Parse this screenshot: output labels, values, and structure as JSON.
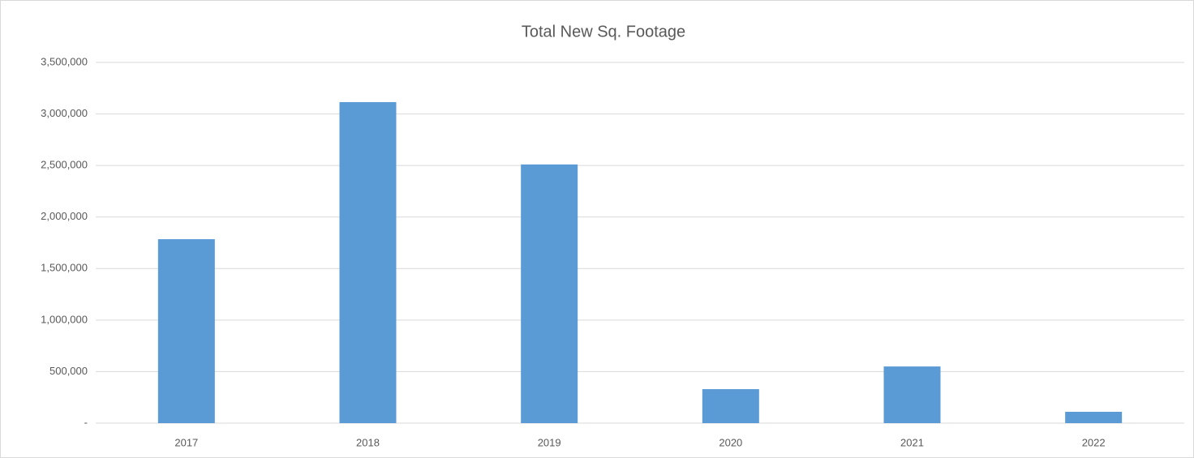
{
  "chart_data": {
    "type": "bar",
    "title": "Total New Sq. Footage",
    "categories": [
      "2017",
      "2018",
      "2019",
      "2020",
      "2021",
      "2022"
    ],
    "values": [
      1785000,
      3115000,
      2510000,
      330000,
      550000,
      110000
    ],
    "color": "#5b9bd5",
    "ylim": [
      0,
      3500000
    ],
    "yticks": [
      {
        "value": 0,
        "label": "-"
      },
      {
        "value": 500000,
        "label": "500,000"
      },
      {
        "value": 1000000,
        "label": "1,000,000"
      },
      {
        "value": 1500000,
        "label": "1,500,000"
      },
      {
        "value": 2000000,
        "label": "2,000,000"
      },
      {
        "value": 2500000,
        "label": "2,500,000"
      },
      {
        "value": 3000000,
        "label": "3,000,000"
      },
      {
        "value": 3500000,
        "label": "3,500,000"
      }
    ],
    "grid": true
  }
}
